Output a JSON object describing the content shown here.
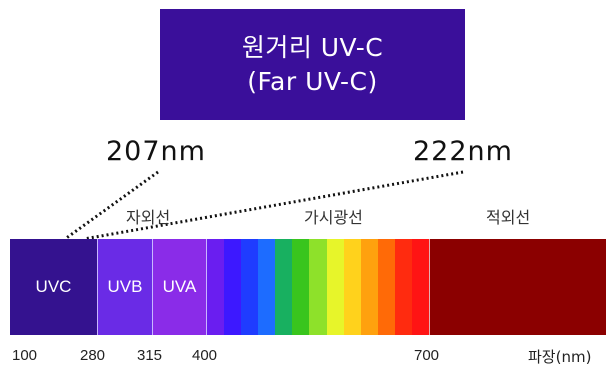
{
  "title": {
    "line1": "원거리 UV-C",
    "line2": "(Far UV-C)"
  },
  "markers": [
    {
      "label": "207nm"
    },
    {
      "label": "222nm"
    }
  ],
  "bands": [
    {
      "label": "자외선"
    },
    {
      "label": "가시광선"
    },
    {
      "label": "적외선"
    }
  ],
  "segments": [
    {
      "label": "UVC",
      "color": "#34128f"
    },
    {
      "label": "UVB",
      "color": "#6a2be6"
    },
    {
      "label": "UVA",
      "color": "#8a2ce8"
    },
    {
      "label": "",
      "color": "#8b0000"
    }
  ],
  "visible_spectrum_colors": [
    "#6a1ef0",
    "#3d18ff",
    "#1f3cff",
    "#1d6cff",
    "#18b060",
    "#39c51d",
    "#8ee12a",
    "#e7f52a",
    "#ffd21c",
    "#ffa10e",
    "#ff6a07",
    "#ff2b0f",
    "#ff1414"
  ],
  "ticks": [
    "100",
    "280",
    "315",
    "400",
    "700"
  ],
  "unit": "파장(nm)"
}
